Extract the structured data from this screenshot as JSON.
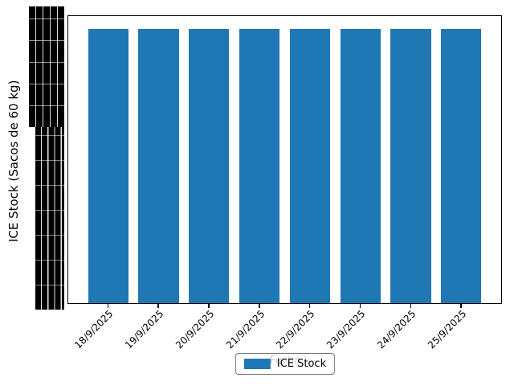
{
  "figure": {
    "background": "#ffffff",
    "ylabel": "ICE Stock (Sacos de 60 kg)",
    "xlabel": "Fecha",
    "y_axis_note": "y tick labels overlap into an illegible black mass"
  },
  "legend": {
    "label": "ICE Stock",
    "swatch_color": "#1f77b4",
    "position": "lower center"
  },
  "chart_data": {
    "type": "bar",
    "title": "",
    "xlabel": "Fecha",
    "ylabel": "ICE Stock (Sacos de 60 kg)",
    "categories": [
      "18/9/2025",
      "19/9/2025",
      "20/9/2025",
      "21/9/2025",
      "22/9/2025",
      "23/9/2025",
      "24/9/2025",
      "25/9/2025"
    ],
    "series": [
      {
        "name": "ICE Stock",
        "values": [
          1,
          1,
          1,
          1,
          1,
          1,
          1,
          1
        ]
      }
    ],
    "bar_color": "#1f77b4",
    "bar_height_fraction": 0.955,
    "y_tick_labels_legible": false,
    "grid": false,
    "legend_position": "lower center"
  }
}
